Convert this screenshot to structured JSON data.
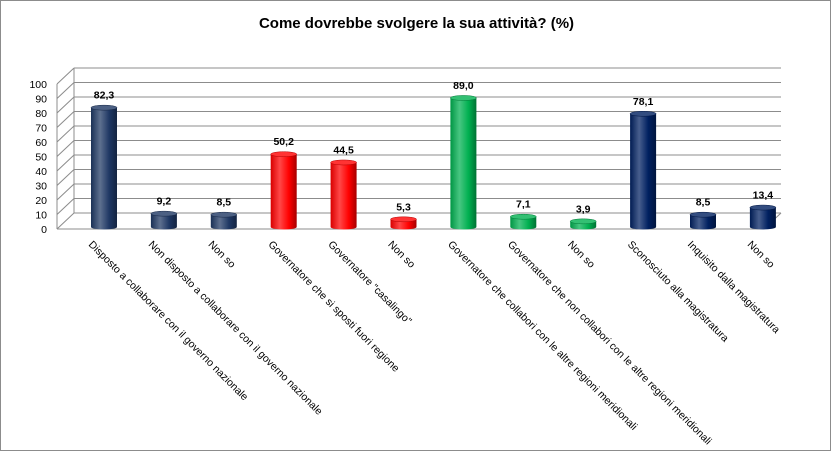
{
  "chart_data": {
    "type": "bar",
    "title": "Come dovrebbe svolgere la sua attività? (%)",
    "xlabel": "",
    "ylabel": "",
    "ylim": [
      0,
      100
    ],
    "yticks": [
      "0",
      "10",
      "20",
      "30",
      "40",
      "50",
      "60",
      "70",
      "80",
      "90",
      "100"
    ],
    "grid": true,
    "legend": "none",
    "categories": [
      "Disposto a collaborare con il governo nazionale",
      "Non disposto a collaborare con il governo nazionale",
      "Non so",
      "Governatore che si sposti fuori regione",
      "Governatore \"casalingo\"",
      "Non so",
      "Governatore che collabori con le altre regioni meridionali",
      "Governatore che non collabori con le altre regioni meridionali",
      "Non so",
      "Sconosciuto alla magistratura",
      "Inquisito dalla magistratura",
      "Non so"
    ],
    "values": [
      82.3,
      9.2,
      8.5,
      50.2,
      44.5,
      5.3,
      89.0,
      7.1,
      3.9,
      78.1,
      8.5,
      13.4
    ],
    "value_labels": [
      "82,3",
      "9,2",
      "8,5",
      "50,2",
      "44,5",
      "5,3",
      "89,0",
      "7,1",
      "3,9",
      "78,1",
      "8,5",
      "13,4"
    ],
    "colors": [
      "#1f3864",
      "#1f3864",
      "#1f3864",
      "#ff0000",
      "#ff0000",
      "#ff0000",
      "#00b050",
      "#00b050",
      "#00b050",
      "#002060",
      "#002060",
      "#002060"
    ]
  }
}
